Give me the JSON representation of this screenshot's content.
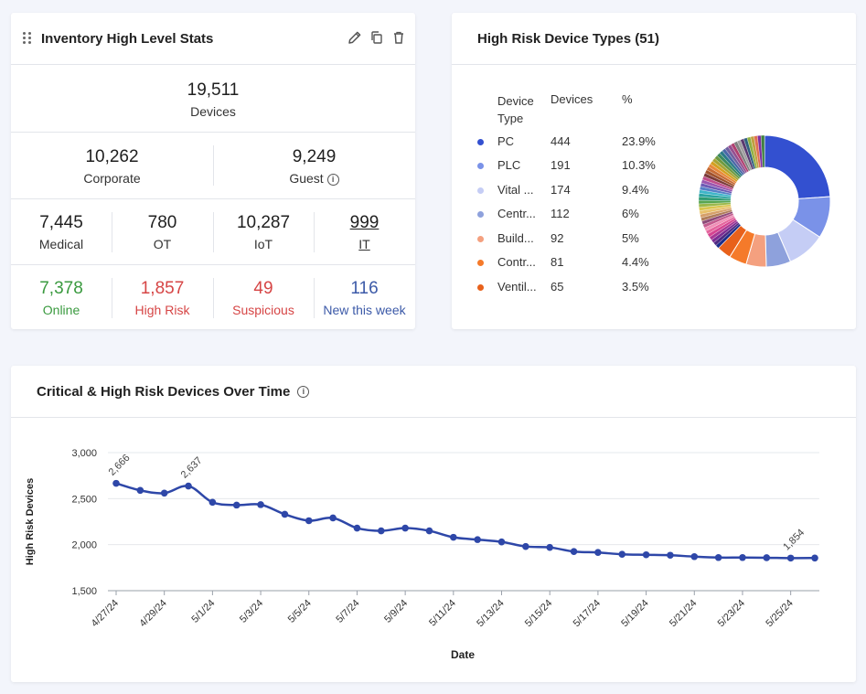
{
  "stats_card": {
    "title": "Inventory High Level Stats",
    "total": {
      "value": "19,511",
      "label": "Devices"
    },
    "split": [
      {
        "value": "10,262",
        "label": "Corporate"
      },
      {
        "value": "9,249",
        "label": "Guest"
      }
    ],
    "types": [
      {
        "value": "7,445",
        "label": "Medical"
      },
      {
        "value": "780",
        "label": "OT"
      },
      {
        "value": "10,287",
        "label": "IoT"
      },
      {
        "value": "999",
        "label": "IT"
      }
    ],
    "status": [
      {
        "value": "7,378",
        "label": "Online"
      },
      {
        "value": "1,857",
        "label": "High Risk"
      },
      {
        "value": "49",
        "label": "Suspicious"
      },
      {
        "value": "116",
        "label": "New this week"
      }
    ],
    "icons": [
      "drag-handle-icon",
      "pencil-icon",
      "copy-icon",
      "trash-icon",
      "info-icon"
    ]
  },
  "types_card": {
    "title": "High Risk Device Types (51)",
    "columns": [
      "Device Type",
      "Devices",
      "%"
    ],
    "rows": [
      {
        "type": "PC",
        "devices": "444",
        "pct": "23.9%",
        "color": "#3350d0"
      },
      {
        "type": "PLC",
        "devices": "191",
        "pct": "10.3%",
        "color": "#7a92e8"
      },
      {
        "type": "Vital ...",
        "devices": "174",
        "pct": "9.4%",
        "color": "#c5cdf5"
      },
      {
        "type": "Centr...",
        "devices": "112",
        "pct": "6%",
        "color": "#8ea1dc"
      },
      {
        "type": "Build...",
        "devices": "92",
        "pct": "5%",
        "color": "#f4a07f"
      },
      {
        "type": "Contr...",
        "devices": "81",
        "pct": "4.4%",
        "color": "#f57a2a"
      },
      {
        "type": "Ventil...",
        "devices": "65",
        "pct": "3.5%",
        "color": "#e8611b"
      }
    ]
  },
  "trend_card": {
    "title": "Critical & High Risk Devices Over Time"
  },
  "chart_data": {
    "type": "line",
    "xlabel": "Date",
    "ylabel": "High Risk Devices",
    "ylim": [
      1500,
      3000
    ],
    "yticks": [
      "1,500",
      "2,000",
      "2,500",
      "3,000"
    ],
    "xticks": [
      "4/27/24",
      "4/29/24",
      "5/1/24",
      "5/3/24",
      "5/5/24",
      "5/7/24",
      "5/9/24",
      "5/11/24",
      "5/13/24",
      "5/15/24",
      "5/17/24",
      "5/19/24",
      "5/21/24",
      "5/23/24",
      "5/25/24"
    ],
    "x": [
      "4/27/24",
      "4/28/24",
      "4/29/24",
      "4/30/24",
      "5/1/24",
      "5/2/24",
      "5/3/24",
      "5/4/24",
      "5/5/24",
      "5/6/24",
      "5/7/24",
      "5/8/24",
      "5/9/24",
      "5/10/24",
      "5/11/24",
      "5/12/24",
      "5/13/24",
      "5/14/24",
      "5/15/24",
      "5/16/24",
      "5/17/24",
      "5/18/24",
      "5/19/24",
      "5/20/24",
      "5/21/24",
      "5/22/24",
      "5/23/24",
      "5/24/24",
      "5/25/24",
      "5/26/24"
    ],
    "values": [
      2666,
      2590,
      2560,
      2637,
      2460,
      2430,
      2435,
      2330,
      2260,
      2290,
      2180,
      2150,
      2180,
      2150,
      2080,
      2055,
      2030,
      1980,
      1970,
      1925,
      1915,
      1895,
      1890,
      1885,
      1870,
      1860,
      1860,
      1858,
      1854,
      1855
    ],
    "data_labels": [
      {
        "label": "2,666",
        "x": "4/27/24"
      },
      {
        "label": "2,637",
        "x": "4/30/24"
      },
      {
        "label": "1,854",
        "x": "5/25/24"
      }
    ],
    "color": "#2e47a8",
    "grid": true
  },
  "donut": {
    "others_colors": [
      "#1a2c8a",
      "#4e2a82",
      "#7b2d92",
      "#a83894",
      "#d54491",
      "#e5669e",
      "#f08fb6",
      "#c35b8e",
      "#8e4a78",
      "#b07d5b",
      "#d6a06a",
      "#e8c06a",
      "#d9c54e",
      "#9ab84a",
      "#57a550",
      "#2e9a72",
      "#2aa3a0",
      "#3fb5c9",
      "#5680c7",
      "#6d5bb5",
      "#9a56b0",
      "#c04e8c",
      "#7a3a3a",
      "#a0522d",
      "#c76b35",
      "#e88a3b",
      "#d4a020",
      "#a8a535",
      "#6f9a40",
      "#3d8a60",
      "#2b7a8a",
      "#4a68a8",
      "#7060a0",
      "#955090",
      "#b04070",
      "#808080",
      "#a0a0a0",
      "#5a3a70",
      "#306080",
      "#90b040",
      "#c0a040",
      "#e07050",
      "#8030a0",
      "#408040"
    ],
    "others_values": [
      1,
      1,
      1,
      1,
      1,
      1,
      1,
      1,
      1,
      1,
      1,
      1,
      1,
      1,
      1,
      1,
      1,
      1,
      1,
      1,
      1,
      1,
      1,
      1,
      1,
      1,
      1,
      1,
      1,
      1,
      1,
      1,
      1,
      1,
      1,
      1,
      1,
      1,
      1,
      1,
      1,
      1,
      1,
      1
    ]
  }
}
